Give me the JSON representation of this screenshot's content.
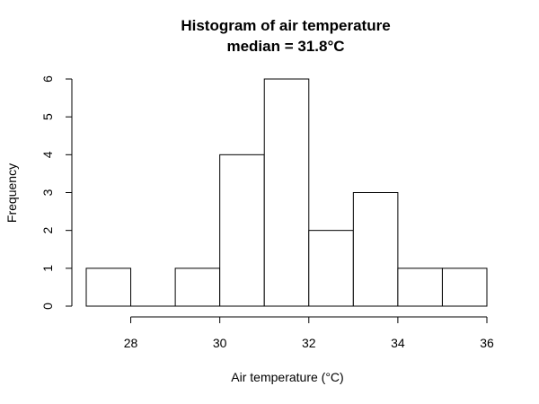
{
  "chart_data": {
    "type": "bar",
    "title": "Histogram of air temperature",
    "subtitle": "median = 31.8°C",
    "xlabel": "Air temperature (°C)",
    "ylabel": "Frequency",
    "bins": [
      {
        "start": 27,
        "end": 28,
        "count": 1
      },
      {
        "start": 28,
        "end": 29,
        "count": 0
      },
      {
        "start": 29,
        "end": 30,
        "count": 1
      },
      {
        "start": 30,
        "end": 31,
        "count": 4
      },
      {
        "start": 31,
        "end": 32,
        "count": 6
      },
      {
        "start": 32,
        "end": 33,
        "count": 2
      },
      {
        "start": 33,
        "end": 34,
        "count": 3
      },
      {
        "start": 34,
        "end": 35,
        "count": 1
      },
      {
        "start": 35,
        "end": 36,
        "count": 1
      }
    ],
    "xticks": [
      "28",
      "30",
      "32",
      "34",
      "36"
    ],
    "yticks": [
      "0",
      "1",
      "2",
      "3",
      "4",
      "5",
      "6"
    ],
    "xlim": [
      27,
      36
    ],
    "ylim": [
      0,
      6
    ],
    "grid": false
  }
}
